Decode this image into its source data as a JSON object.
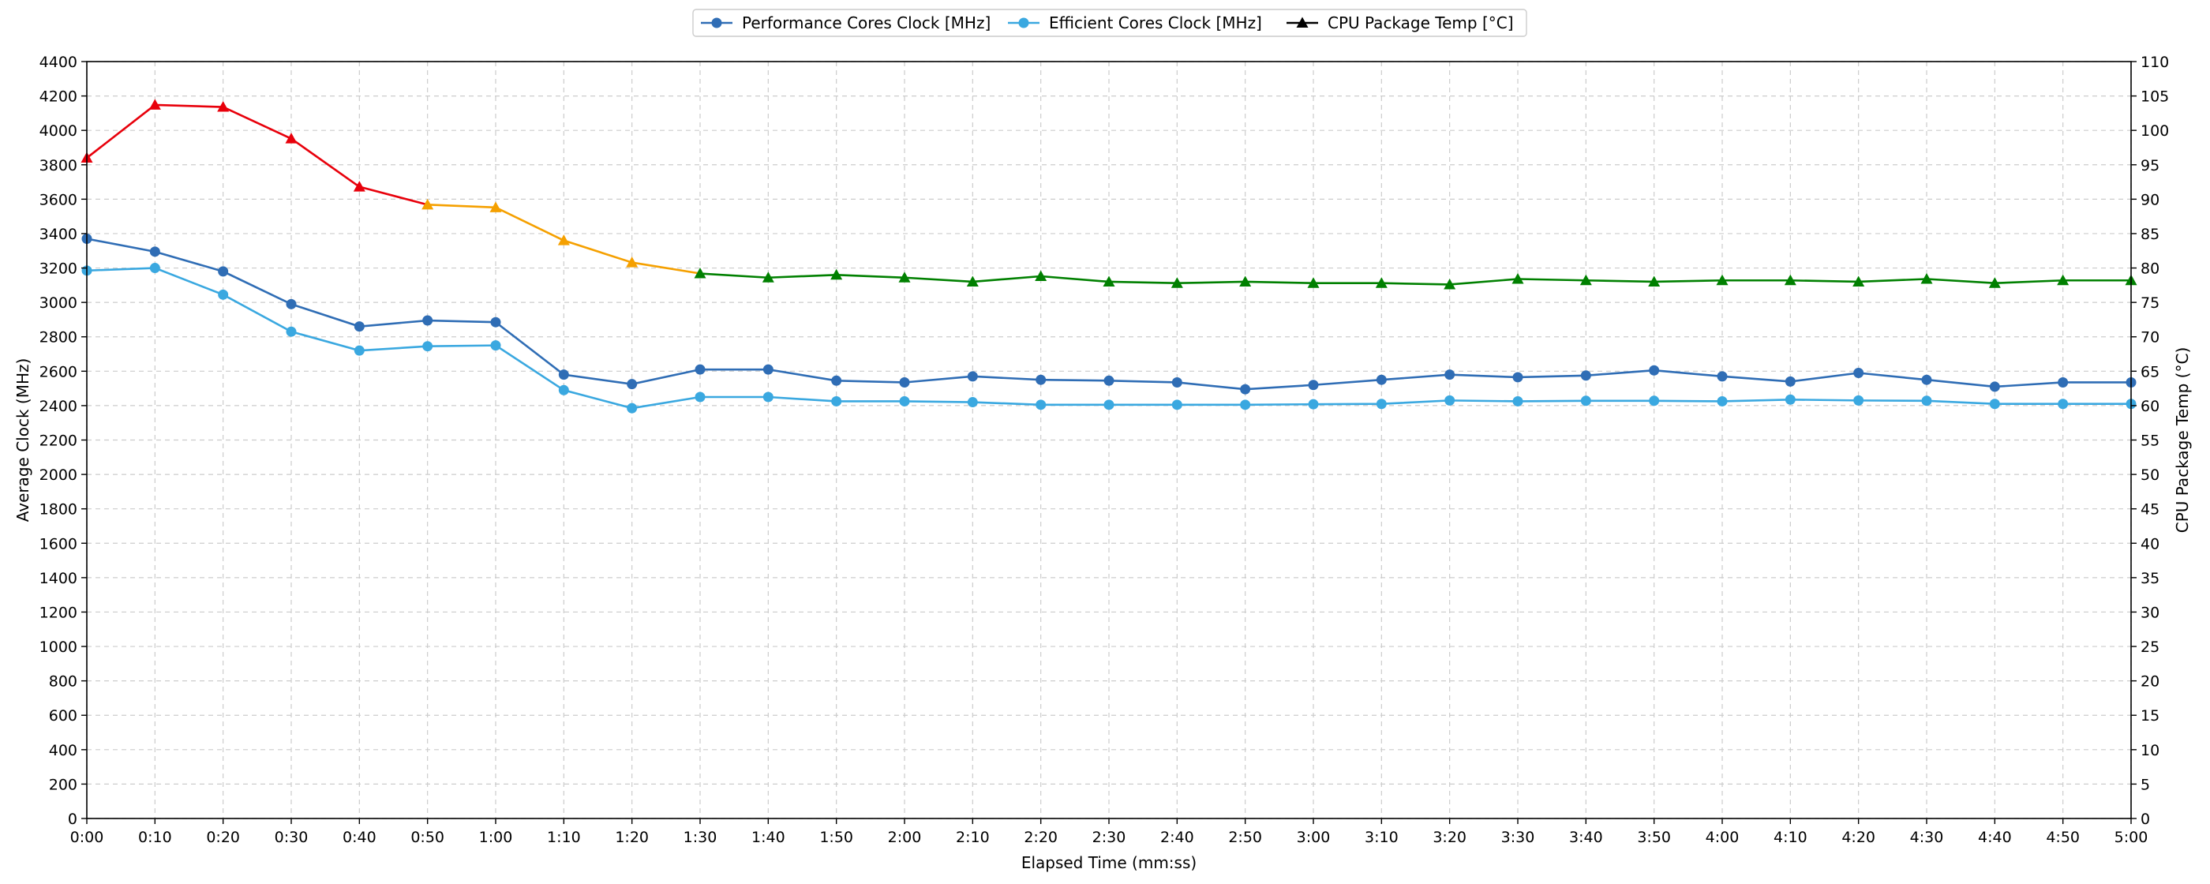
{
  "chart_data": {
    "type": "line",
    "x": [
      "0:00",
      "0:10",
      "0:20",
      "0:30",
      "0:40",
      "0:50",
      "1:00",
      "1:10",
      "1:20",
      "1:30",
      "1:40",
      "1:50",
      "2:00",
      "2:10",
      "2:20",
      "2:30",
      "2:40",
      "2:50",
      "3:00",
      "3:10",
      "3:20",
      "3:30",
      "3:40",
      "3:50",
      "4:00",
      "4:10",
      "4:20",
      "4:30",
      "4:40",
      "4:50",
      "5:00"
    ],
    "xlabel": "Elapsed Time (mm:ss)",
    "ylabel": "Average Clock (MHz)",
    "y2label": "CPU Package Temp (°C)",
    "ylim": [
      0,
      4400
    ],
    "y2lim": [
      0,
      110
    ],
    "yticks": [
      0,
      200,
      400,
      600,
      800,
      1000,
      1200,
      1400,
      1600,
      1800,
      2000,
      2200,
      2400,
      2600,
      2800,
      3000,
      3200,
      3400,
      3600,
      3800,
      4000,
      4200,
      4400
    ],
    "y2ticks": [
      0,
      5,
      10,
      15,
      20,
      25,
      30,
      35,
      40,
      45,
      50,
      55,
      60,
      65,
      70,
      75,
      80,
      85,
      90,
      95,
      100,
      105,
      110
    ],
    "grid": true,
    "legend_placement": "top-center",
    "series": [
      {
        "name": "Performance Cores Clock [MHz]",
        "axis": "left",
        "color": "#2f6db5",
        "marker": "circle",
        "values": [
          3370,
          3295,
          3180,
          2990,
          2860,
          2895,
          2885,
          2580,
          2525,
          2610,
          2610,
          2545,
          2535,
          2570,
          2550,
          2545,
          2535,
          2495,
          2520,
          2550,
          2580,
          2565,
          2575,
          2605,
          2570,
          2540,
          2590,
          2550,
          2510,
          2535,
          2535
        ]
      },
      {
        "name": "Efficient Cores Clock [MHz]",
        "axis": "left",
        "color": "#3aa8e0",
        "marker": "circle",
        "values": [
          3185,
          3200,
          3045,
          2830,
          2720,
          2745,
          2750,
          2490,
          2385,
          2450,
          2450,
          2425,
          2425,
          2420,
          2405,
          2405,
          2405,
          2405,
          2408,
          2410,
          2430,
          2425,
          2428,
          2428,
          2425,
          2435,
          2430,
          2428,
          2410,
          2410,
          2410
        ]
      },
      {
        "name": "CPU Package Temp [°C]",
        "axis": "right",
        "color": "#000000",
        "marker": "triangle",
        "values": [
          96,
          103.7,
          103.4,
          98.8,
          91.8,
          89.2,
          88.8,
          84,
          80.8,
          79.2,
          78.6,
          79,
          78.6,
          78,
          78.8,
          78,
          77.8,
          78,
          77.8,
          77.8,
          77.6,
          78.4,
          78.2,
          78,
          78.2,
          78.2,
          78,
          78.4,
          77.8,
          78.2,
          78.2
        ],
        "segment_colors": [
          "#e8000b",
          "#e8000b",
          "#e8000b",
          "#e8000b",
          "#e8000b",
          "#f5a000",
          "#f5a000",
          "#f5a000",
          "#f5a000",
          "#008000",
          "#008000",
          "#008000",
          "#008000",
          "#008000",
          "#008000",
          "#008000",
          "#008000",
          "#008000",
          "#008000",
          "#008000",
          "#008000",
          "#008000",
          "#008000",
          "#008000",
          "#008000",
          "#008000",
          "#008000",
          "#008000",
          "#008000",
          "#008000",
          "#008000"
        ]
      }
    ]
  }
}
